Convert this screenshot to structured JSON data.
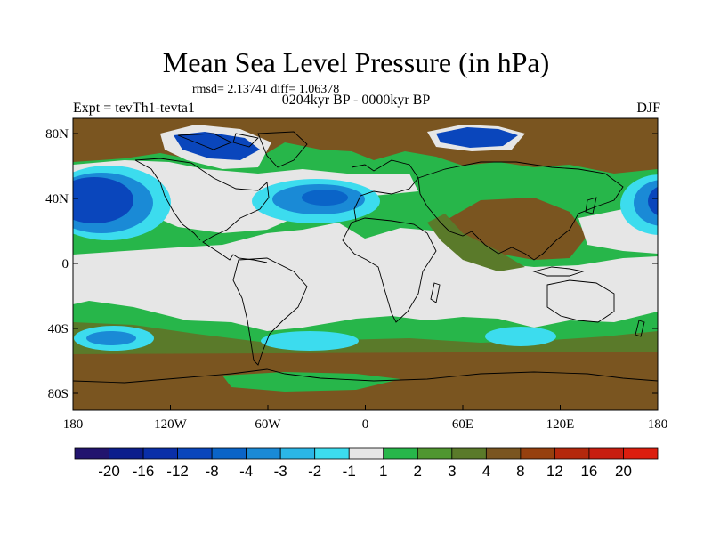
{
  "title": "Mean Sea Level Pressure (in hPa)",
  "stats": "rmsd= 2.13741 diff= 1.06378",
  "subtitle": "0204kyr BP - 0000kyr BP",
  "experiment": "Expt = tevTh1-tevta1",
  "season": "DJF",
  "axes": {
    "y_ticks": [
      "80N",
      "40N",
      "0",
      "40S",
      "80S"
    ],
    "x_ticks": [
      "180",
      "120W",
      "60W",
      "0",
      "60E",
      "120E",
      "180"
    ]
  },
  "colorbar": {
    "labels": [
      "-20",
      "-16",
      "-12",
      "-8",
      "-4",
      "-3",
      "-2",
      "-1",
      "1",
      "2",
      "3",
      "4",
      "8",
      "12",
      "16",
      "20"
    ],
    "colors": [
      "#22146e",
      "#0c1e8c",
      "#0a2fa8",
      "#0a46bc",
      "#0a64c8",
      "#1a8ad6",
      "#2bb6e6",
      "#3cdcee",
      "#e6e6e6",
      "#27b64a",
      "#4f9630",
      "#5a7a2a",
      "#7a5520",
      "#96400e",
      "#b4280c",
      "#c81e10",
      "#dc1e0e"
    ]
  },
  "palette": {
    "land_brown": "#7a5520",
    "green": "#27b64a",
    "dark_green": "#5a7a2a",
    "neutral": "#e6e6e6",
    "light_blue": "#3cdcee",
    "mid_blue": "#1a8ad6",
    "dark_blue": "#0a46bc",
    "coast": "#000000"
  }
}
